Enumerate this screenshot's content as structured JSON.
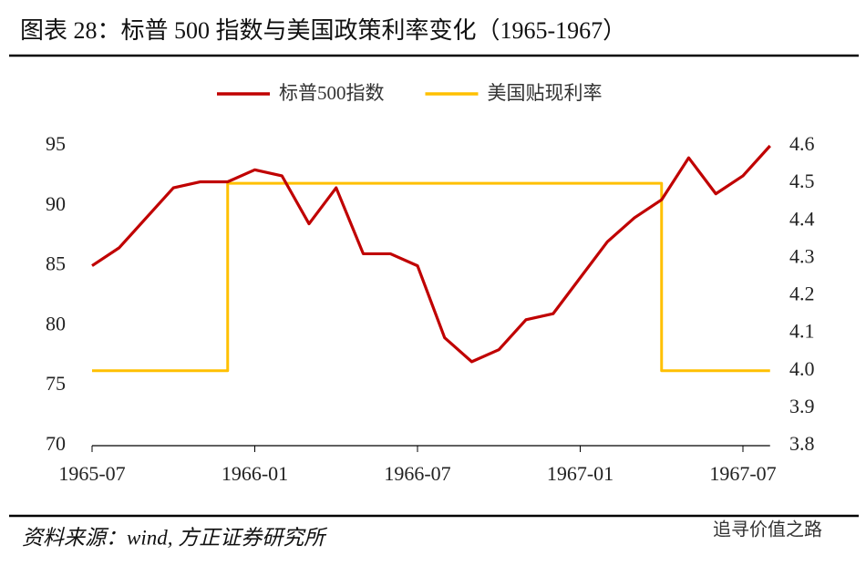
{
  "title": "图表 28：标普 500 指数与美国政策利率变化（1965-1967）",
  "source": "资料来源：wind, 方正证券研究所",
  "watermark": "追寻价值之路",
  "chart_data": {
    "type": "line",
    "x": [
      "1965-07",
      "1965-08",
      "1965-09",
      "1965-10",
      "1965-11",
      "1965-12",
      "1966-01",
      "1966-02",
      "1966-03",
      "1966-04",
      "1966-05",
      "1966-06",
      "1966-07",
      "1966-08",
      "1966-09",
      "1966-10",
      "1966-11",
      "1966-12",
      "1967-01",
      "1967-02",
      "1967-03",
      "1967-04",
      "1967-05",
      "1967-06",
      "1967-07",
      "1967-08"
    ],
    "series": [
      {
        "name": "标普500指数",
        "color": "#c00000",
        "values": [
          85,
          86.5,
          89,
          91.5,
          92,
          92,
          93,
          92.5,
          88.5,
          91.5,
          86,
          86,
          85,
          79,
          77,
          78,
          80.5,
          81,
          84,
          87,
          89,
          90.5,
          94,
          91,
          92.5,
          95
        ]
      },
      {
        "name": "美国贴现利率",
        "color": "#ffc000",
        "axis": "y2",
        "step": true,
        "values": [
          4.0,
          4.0,
          4.0,
          4.0,
          4.0,
          4.5,
          4.5,
          4.5,
          4.5,
          4.5,
          4.5,
          4.5,
          4.5,
          4.5,
          4.5,
          4.5,
          4.5,
          4.5,
          4.5,
          4.5,
          4.5,
          4.0,
          4.0,
          4.0,
          4.0,
          4.0
        ]
      }
    ],
    "xticks": [
      "1965-07",
      "1966-01",
      "1966-07",
      "1967-01",
      "1967-07"
    ],
    "ylim": [
      70,
      95
    ],
    "yticks": [
      70,
      75,
      80,
      85,
      90,
      95
    ],
    "y2lim": [
      3.8,
      4.6
    ],
    "y2ticks": [
      3.8,
      3.9,
      {
        "value": 4.0,
        "label": "4.0"
      },
      4.1,
      4.2,
      4.3,
      4.4,
      4.5,
      4.6
    ],
    "legend": "top"
  }
}
